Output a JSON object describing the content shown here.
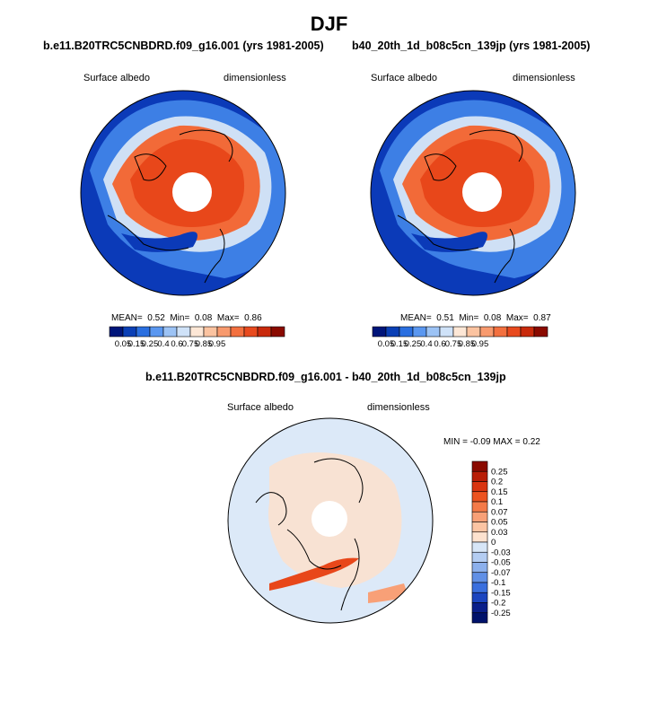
{
  "title": "DJF",
  "panels": [
    {
      "case": "b.e11.B20TRC5CNBDRD.f09_g16.001 (yrs 1981-2005)",
      "variable": "Surface albedo",
      "units": "dimensionless",
      "stats": {
        "mean_label": "MEAN=",
        "mean": "0.52",
        "min_label": "Min=",
        "min": "0.08",
        "max_label": "Max=",
        "max": "0.86"
      }
    },
    {
      "case": "b40_20th_1d_b08c5cn_139jp (yrs 1981-2005)",
      "variable": "Surface albedo",
      "units": "dimensionless",
      "stats": {
        "mean_label": "MEAN=",
        "mean": "0.51",
        "min_label": "Min=",
        "min": "0.08",
        "max_label": "Max=",
        "max": "0.87"
      }
    }
  ],
  "difference": {
    "title": "b.e11.B20TRC5CNBDRD.f09_g16.001 - b40_20th_1d_b08c5cn_139jp",
    "variable": "Surface albedo",
    "units": "dimensionless",
    "stats": "MIN =  -0.09 MAX =   0.22"
  },
  "colorbar_top": {
    "labels": [
      "0.05",
      "0.15",
      "0.25",
      "0.4",
      "0.6",
      "0.75",
      "0.85",
      "0.95"
    ],
    "colors": [
      "#00157a",
      "#0a3fb5",
      "#2a6fe0",
      "#5a97f0",
      "#9cc3f5",
      "#cfe2f8",
      "#fde7d6",
      "#fbc3a0",
      "#f89a6e",
      "#f3703f",
      "#e84a1e",
      "#c92a0c",
      "#8a0a00"
    ]
  },
  "colorbar_diff": {
    "labels": [
      "0.25",
      "0.2",
      "0.15",
      "0.1",
      "0.07",
      "0.05",
      "0.03",
      "0",
      "-0.03",
      "-0.05",
      "-0.07",
      "-0.1",
      "-0.15",
      "-0.2",
      "-0.25"
    ],
    "colors": [
      "#8a0a00",
      "#b81d06",
      "#d93410",
      "#ec5320",
      "#f47a48",
      "#f8a077",
      "#fbc4a3",
      "#fde2cf",
      "#d7e6f7",
      "#b4cdf2",
      "#8cb0ec",
      "#6190e6",
      "#3a6fde",
      "#1b45bf",
      "#0a1f8a",
      "#00126b"
    ]
  },
  "map_colors": {
    "ocean_low": "#0b3ab8",
    "ocean_mid": "#2c6be0",
    "ice_high": "#e8471a",
    "ice_mid": "#f26a38",
    "ice_edge": "#fbc6a6",
    "pole_hole": "#ffffff",
    "diff_background": "#dce9f8",
    "diff_positive": "#fde0cc",
    "diff_strong": "#e8471a"
  }
}
